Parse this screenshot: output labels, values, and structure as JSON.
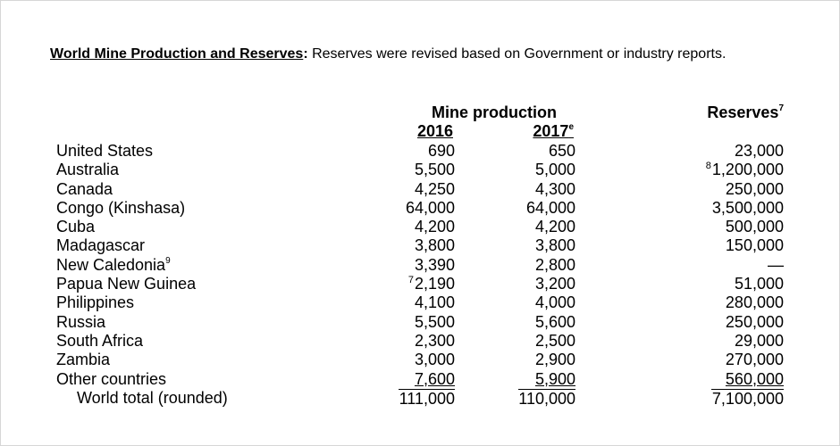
{
  "heading": {
    "lead": "World Mine Production and Reserves",
    "colon": ":",
    "text": " Reserves were revised based on Government or industry reports."
  },
  "columns": {
    "mine_production": "Mine production",
    "reserves": "Reserves",
    "reserves_note": "7",
    "year_2016": "2016",
    "year_2017": "2017",
    "year_2017_note": "e"
  },
  "rows": [
    {
      "name": "United States",
      "name_note": "",
      "p2016_note": "",
      "p2016": "690",
      "p2017": "650",
      "res_note": "",
      "reserves": "23,000"
    },
    {
      "name": "Australia",
      "name_note": "",
      "p2016_note": "",
      "p2016": "5,500",
      "p2017": "5,000",
      "res_note": "8",
      "reserves": "1,200,000"
    },
    {
      "name": "Canada",
      "name_note": "",
      "p2016_note": "",
      "p2016": "4,250",
      "p2017": "4,300",
      "res_note": "",
      "reserves": "250,000"
    },
    {
      "name": "Congo (Kinshasa)",
      "name_note": "",
      "p2016_note": "",
      "p2016": "64,000",
      "p2017": "64,000",
      "res_note": "",
      "reserves": "3,500,000"
    },
    {
      "name": "Cuba",
      "name_note": "",
      "p2016_note": "",
      "p2016": "4,200",
      "p2017": "4,200",
      "res_note": "",
      "reserves": "500,000"
    },
    {
      "name": "Madagascar",
      "name_note": "",
      "p2016_note": "",
      "p2016": "3,800",
      "p2017": "3,800",
      "res_note": "",
      "reserves": "150,000"
    },
    {
      "name": "New Caledonia",
      "name_note": "9",
      "p2016_note": "",
      "p2016": "3,390",
      "p2017": "2,800",
      "res_note": "",
      "reserves": "—"
    },
    {
      "name": "Papua New Guinea",
      "name_note": "",
      "p2016_note": "7",
      "p2016": "2,190",
      "p2017": "3,200",
      "res_note": "",
      "reserves": "51,000"
    },
    {
      "name": "Philippines",
      "name_note": "",
      "p2016_note": "",
      "p2016": "4,100",
      "p2017": "4,000",
      "res_note": "",
      "reserves": "280,000"
    },
    {
      "name": "Russia",
      "name_note": "",
      "p2016_note": "",
      "p2016": "5,500",
      "p2017": "5,600",
      "res_note": "",
      "reserves": "250,000"
    },
    {
      "name": "South Africa",
      "name_note": "",
      "p2016_note": "",
      "p2016": "2,300",
      "p2017": "2,500",
      "res_note": "",
      "reserves": "29,000"
    },
    {
      "name": "Zambia",
      "name_note": "",
      "p2016_note": "",
      "p2016": "3,000",
      "p2017": "2,900",
      "res_note": "",
      "reserves": "270,000"
    },
    {
      "name": "Other countries",
      "name_note": "",
      "p2016_note": "",
      "p2016": "7,600",
      "p2017": "5,900",
      "res_note": "",
      "reserves": "560,000"
    },
    {
      "name": "World total (rounded)",
      "name_note": "",
      "p2016_note": "",
      "p2016": "111,000",
      "p2017": "110,000",
      "res_note": "",
      "reserves": "7,100,000"
    }
  ]
}
